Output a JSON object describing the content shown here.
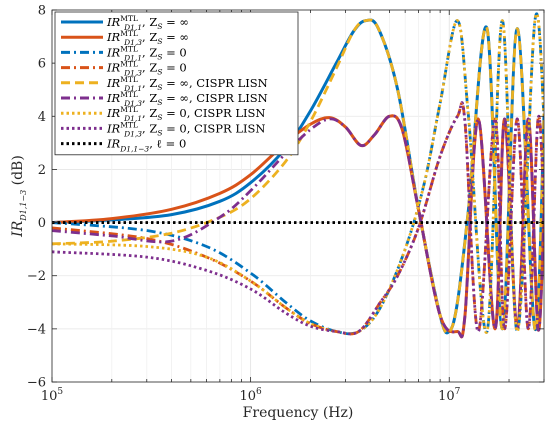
{
  "chart_data": {
    "type": "line",
    "xscale": "log",
    "xlim": [
      100000,
      30000000
    ],
    "ylim": [
      -6,
      8
    ],
    "xlabel": "Frequency (Hz)",
    "ylabel": "IR_{D1,1-3} (dB)",
    "x_ticks": [
      {
        "value": 100000,
        "label": "10",
        "exp": "5"
      },
      {
        "value": 1000000,
        "label": "10",
        "exp": "6"
      },
      {
        "value": 10000000,
        "label": "10",
        "exp": "7"
      }
    ],
    "y_ticks": [
      -6,
      -4,
      -2,
      0,
      2,
      4,
      6,
      8
    ],
    "grid": true,
    "legend_placement": "top-left",
    "series": [
      {
        "name": "IR_D1,1^MTL, Z_S = ∞",
        "color": "#0072BD",
        "dash": "solid",
        "x": [
          100000,
          200000,
          400000,
          700000,
          1000000,
          1500000,
          2000000,
          2700000,
          3300000,
          3800000,
          4400000,
          5500000,
          7000000,
          9000000,
          10000000,
          11000000,
          12500000,
          15500000,
          18500000,
          22000000,
          27000000,
          30000000
        ],
        "y": [
          0.0,
          0.1,
          0.3,
          0.8,
          1.5,
          2.8,
          4.2,
          6.0,
          7.2,
          7.6,
          7.3,
          5.0,
          0.5,
          -3.5,
          -4.1,
          -3.0,
          0.5,
          7.3,
          -4.0,
          7.3,
          -4.0,
          4.0
        ]
      },
      {
        "name": "IR_D1,3^MTL, Z_S = ∞",
        "color": "#D95319",
        "dash": "solid",
        "x": [
          100000,
          200000,
          400000,
          700000,
          1000000,
          1500000,
          2000000,
          2500000,
          3000000,
          3600000,
          4200000,
          5000000,
          5800000,
          7000000,
          9000000,
          11000000,
          12000000,
          14000000,
          17000000,
          19000000,
          22000000,
          25000000,
          28000000,
          30000000
        ],
        "y": [
          0.0,
          0.15,
          0.5,
          1.1,
          1.8,
          3.0,
          3.7,
          3.95,
          3.6,
          2.9,
          3.3,
          4.0,
          3.5,
          0.5,
          -3.5,
          -4.1,
          -3.5,
          3.9,
          -4.0,
          3.9,
          -4.0,
          3.9,
          -4.0,
          0.5
        ]
      },
      {
        "name": "IR_D1,1^MTL, Z_S = 0",
        "color": "#0072BD",
        "dash": "dashdot",
        "x": [
          100000,
          300000,
          600000,
          1000000,
          1500000,
          2000000,
          2700000,
          3500000,
          4500000,
          6000000,
          7500000,
          9000000,
          11000000,
          12500000,
          15500000,
          18500000,
          22000000,
          27000000,
          30000000
        ],
        "y": [
          0.0,
          -0.3,
          -0.9,
          -1.9,
          -3.0,
          -3.7,
          -4.1,
          -4.1,
          -3.2,
          -1.0,
          1.5,
          4.5,
          7.6,
          4.0,
          -4.1,
          7.6,
          -4.1,
          7.6,
          4.0
        ]
      },
      {
        "name": "IR_D1,3^MTL, Z_S = 0",
        "color": "#D95319",
        "dash": "dashdot",
        "x": [
          100000,
          300000,
          600000,
          1000000,
          1500000,
          2000000,
          2700000,
          3500000,
          4500000,
          5500000,
          7000000,
          9000000,
          11000000,
          12000000,
          14000000,
          17000000,
          19000000,
          22000000,
          25000000,
          28000000,
          30000000
        ],
        "y": [
          -0.2,
          -0.6,
          -1.3,
          -2.2,
          -3.2,
          -3.8,
          -4.1,
          -4.1,
          -3.0,
          -2.0,
          -0.2,
          2.5,
          4.0,
          3.8,
          -4.1,
          3.9,
          -4.0,
          3.9,
          -4.0,
          3.9,
          0.5
        ]
      },
      {
        "name": "IR_D1,1^MTL, Z_S = ∞, CISPR LISN",
        "color": "#EDB120",
        "dash": "dash",
        "x": [
          100000,
          200000,
          400000,
          700000,
          1000000,
          1500000,
          2000000,
          2700000,
          3300000,
          3800000,
          4400000,
          5500000,
          7000000,
          9000000,
          10000000,
          11000000,
          12500000,
          15500000,
          18500000,
          22000000,
          27000000,
          30000000
        ],
        "y": [
          -0.8,
          -0.7,
          -0.4,
          0.2,
          0.9,
          2.3,
          3.8,
          5.8,
          7.2,
          7.6,
          7.3,
          5.0,
          0.5,
          -3.5,
          -4.1,
          -3.0,
          0.5,
          7.3,
          -4.0,
          7.3,
          -4.0,
          4.0
        ]
      },
      {
        "name": "IR_D1,3^MTL, Z_S = ∞, CISPR LISN",
        "color": "#7E2F8E",
        "dash": "dashdot",
        "x": [
          100000,
          200000,
          400000,
          700000,
          1000000,
          1500000,
          2000000,
          2500000,
          3000000,
          3600000,
          4200000,
          5000000,
          5800000,
          7000000,
          9000000,
          11000000,
          12000000,
          14000000,
          17000000,
          19000000,
          22000000,
          25000000,
          28000000,
          30000000
        ],
        "y": [
          -0.3,
          -0.5,
          -0.7,
          0.2,
          1.2,
          2.6,
          3.5,
          3.9,
          3.6,
          2.9,
          3.3,
          4.0,
          3.5,
          0.5,
          -3.5,
          -4.1,
          -3.5,
          3.9,
          -4.0,
          3.9,
          -4.0,
          3.9,
          -4.0,
          0.5
        ]
      },
      {
        "name": "IR_D1,1^MTL, Z_S = 0, CISPR LISN",
        "color": "#EDB120",
        "dash": "dot",
        "x": [
          100000,
          300000,
          600000,
          1000000,
          1500000,
          2000000,
          2700000,
          3500000,
          4500000,
          6000000,
          7500000,
          9000000,
          11000000,
          12500000,
          15500000,
          18500000,
          22000000,
          27000000,
          30000000
        ],
        "y": [
          -0.8,
          -0.9,
          -1.3,
          -2.2,
          -3.2,
          -3.8,
          -4.1,
          -4.1,
          -3.2,
          -1.0,
          1.5,
          4.5,
          7.6,
          4.0,
          -4.1,
          7.6,
          -4.1,
          7.6,
          4.0
        ]
      },
      {
        "name": "IR_D1,3^MTL, Z_S = 0, CISPR LISN",
        "color": "#7E2F8E",
        "dash": "dot",
        "x": [
          100000,
          300000,
          600000,
          1000000,
          1500000,
          2000000,
          2700000,
          3500000,
          4500000,
          5500000,
          7000000,
          9000000,
          11000000,
          12000000,
          14000000,
          17000000,
          19000000,
          22000000,
          25000000,
          28000000,
          30000000
        ],
        "y": [
          -1.1,
          -1.3,
          -1.8,
          -2.5,
          -3.4,
          -3.9,
          -4.1,
          -4.1,
          -3.0,
          -2.0,
          -0.2,
          2.5,
          4.0,
          3.8,
          -4.1,
          3.9,
          -4.0,
          3.9,
          -4.0,
          3.9,
          0.5
        ]
      },
      {
        "name": "IR_D1,1-3, ℓ = 0",
        "color": "#000000",
        "dash": "dot",
        "x": [
          100000,
          30000000
        ],
        "y": [
          0,
          0
        ]
      }
    ],
    "legend": [
      {
        "base": "IR",
        "sub": "D1,1",
        "sup": "MTL",
        "tail": ", Z",
        "tail_sub": "S",
        "tail_rest": " = ∞"
      },
      {
        "base": "IR",
        "sub": "D1,3",
        "sup": "MTL",
        "tail": ", Z",
        "tail_sub": "S",
        "tail_rest": " = ∞"
      },
      {
        "base": "IR",
        "sub": "D1,1",
        "sup": "MTL",
        "tail": ", Z",
        "tail_sub": "S",
        "tail_rest": " = 0"
      },
      {
        "base": "IR",
        "sub": "D1,3",
        "sup": "MTL",
        "tail": ", Z",
        "tail_sub": "S",
        "tail_rest": " = 0"
      },
      {
        "base": "IR",
        "sub": "D1,1",
        "sup": "MTL",
        "tail": ", Z",
        "tail_sub": "S",
        "tail_rest": " = ∞, CISPR LISN"
      },
      {
        "base": "IR",
        "sub": "D1,3",
        "sup": "MTL",
        "tail": ", Z",
        "tail_sub": "S",
        "tail_rest": " = ∞, CISPR LISN"
      },
      {
        "base": "IR",
        "sub": "D1,1",
        "sup": "MTL",
        "tail": ", Z",
        "tail_sub": "S",
        "tail_rest": " = 0, CISPR LISN"
      },
      {
        "base": "IR",
        "sub": "D1,3",
        "sup": "MTL",
        "tail": ", Z",
        "tail_sub": "S",
        "tail_rest": " = 0, CISPR LISN"
      },
      {
        "base": "IR",
        "sub": "D1,1−3",
        "sup": "",
        "tail": ", ℓ",
        "tail_sub": "",
        "tail_rest": " = 0"
      }
    ]
  }
}
